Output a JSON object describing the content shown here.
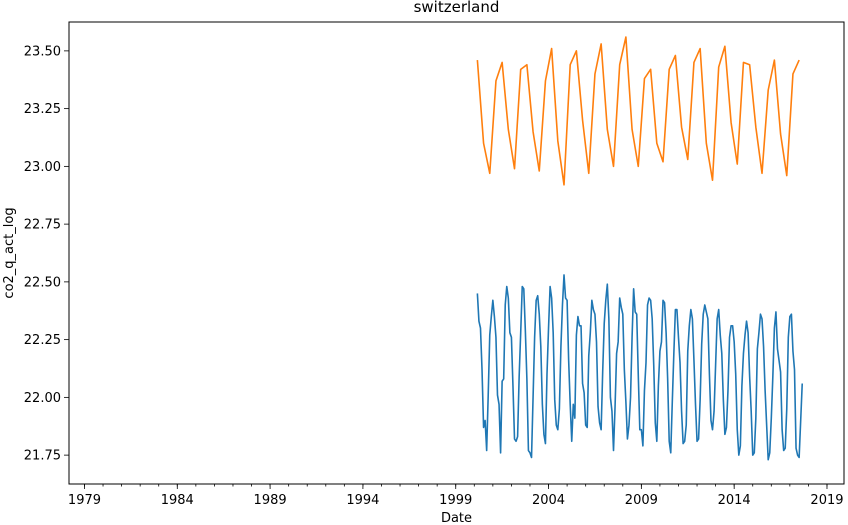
{
  "chart_data": {
    "type": "line",
    "title": "switzerland",
    "xlabel": "Date",
    "ylabel": "co2_q_act_log",
    "xlim": [
      "1978-03",
      "2019-12"
    ],
    "ylim": [
      21.625,
      23.625
    ],
    "x_ticks": [
      "1979",
      "1984",
      "1989",
      "1994",
      "1999",
      "2004",
      "2009",
      "2014",
      "2019"
    ],
    "y_ticks": [
      "21.75",
      "22.00",
      "22.25",
      "22.50",
      "22.75",
      "23.00",
      "23.25",
      "23.50"
    ],
    "grid": false,
    "legend": "none",
    "series": [
      {
        "color": "#1f77b4",
        "points": [
          [
            "2000-03",
            22.45
          ],
          [
            "2000-04",
            22.33
          ],
          [
            "2000-05",
            22.3
          ],
          [
            "2000-06",
            22.12
          ],
          [
            "2000-07",
            21.87
          ],
          [
            "2000-08",
            21.9
          ],
          [
            "2000-09",
            21.77
          ],
          [
            "2000-10",
            22.01
          ],
          [
            "2000-11",
            22.27
          ],
          [
            "2000-12",
            22.35
          ],
          [
            "2001-01",
            22.42
          ],
          [
            "2001-02",
            22.35
          ],
          [
            "2001-03",
            22.26
          ],
          [
            "2001-04",
            22.01
          ],
          [
            "2001-05",
            21.97
          ],
          [
            "2001-06",
            21.76
          ],
          [
            "2001-07",
            22.07
          ],
          [
            "2001-08",
            22.08
          ],
          [
            "2001-09",
            22.4
          ],
          [
            "2001-10",
            22.48
          ],
          [
            "2001-11",
            22.43
          ],
          [
            "2001-12",
            22.28
          ],
          [
            "2002-01",
            22.26
          ],
          [
            "2002-02",
            22.05
          ],
          [
            "2002-03",
            21.82
          ],
          [
            "2002-04",
            21.81
          ],
          [
            "2002-05",
            21.83
          ],
          [
            "2002-06",
            22.09
          ],
          [
            "2002-07",
            22.28
          ],
          [
            "2002-08",
            22.48
          ],
          [
            "2002-09",
            22.47
          ],
          [
            "2002-10",
            22.29
          ],
          [
            "2002-11",
            22.08
          ],
          [
            "2002-12",
            21.77
          ],
          [
            "2003-01",
            21.76
          ],
          [
            "2003-02",
            21.74
          ],
          [
            "2003-03",
            22.0
          ],
          [
            "2003-04",
            22.26
          ],
          [
            "2003-05",
            22.42
          ],
          [
            "2003-06",
            22.44
          ],
          [
            "2003-07",
            22.36
          ],
          [
            "2003-08",
            22.22
          ],
          [
            "2003-09",
            21.97
          ],
          [
            "2003-10",
            21.84
          ],
          [
            "2003-11",
            21.8
          ],
          [
            "2003-12",
            22.1
          ],
          [
            "2004-01",
            22.3
          ],
          [
            "2004-02",
            22.48
          ],
          [
            "2004-03",
            22.43
          ],
          [
            "2004-04",
            22.28
          ],
          [
            "2004-05",
            21.99
          ],
          [
            "2004-06",
            21.88
          ],
          [
            "2004-07",
            21.86
          ],
          [
            "2004-08",
            21.95
          ],
          [
            "2004-09",
            22.22
          ],
          [
            "2004-10",
            22.4
          ],
          [
            "2004-11",
            22.53
          ],
          [
            "2004-12",
            22.43
          ],
          [
            "2005-01",
            22.42
          ],
          [
            "2005-02",
            22.16
          ],
          [
            "2005-03",
            21.97
          ],
          [
            "2005-04",
            21.81
          ],
          [
            "2005-05",
            21.97
          ],
          [
            "2005-06",
            21.91
          ],
          [
            "2005-07",
            22.27
          ],
          [
            "2005-08",
            22.35
          ],
          [
            "2005-09",
            22.31
          ],
          [
            "2005-10",
            22.31
          ],
          [
            "2005-11",
            22.06
          ],
          [
            "2005-12",
            22.02
          ],
          [
            "2006-01",
            21.88
          ],
          [
            "2006-02",
            21.87
          ],
          [
            "2006-03",
            22.18
          ],
          [
            "2006-04",
            22.28
          ],
          [
            "2006-05",
            22.42
          ],
          [
            "2006-06",
            22.38
          ],
          [
            "2006-07",
            22.36
          ],
          [
            "2006-08",
            22.24
          ],
          [
            "2006-09",
            21.96
          ],
          [
            "2006-10",
            21.89
          ],
          [
            "2006-11",
            21.86
          ],
          [
            "2006-12",
            22.11
          ],
          [
            "2007-01",
            22.32
          ],
          [
            "2007-02",
            22.42
          ],
          [
            "2007-03",
            22.49
          ],
          [
            "2007-04",
            22.34
          ],
          [
            "2007-05",
            22.0
          ],
          [
            "2007-06",
            21.94
          ],
          [
            "2007-07",
            21.77
          ],
          [
            "2007-08",
            21.96
          ],
          [
            "2007-09",
            22.19
          ],
          [
            "2007-10",
            22.24
          ],
          [
            "2007-11",
            22.43
          ],
          [
            "2007-12",
            22.39
          ],
          [
            "2008-01",
            22.36
          ],
          [
            "2008-02",
            22.12
          ],
          [
            "2008-03",
            21.98
          ],
          [
            "2008-04",
            21.82
          ],
          [
            "2008-05",
            21.88
          ],
          [
            "2008-06",
            22.0
          ],
          [
            "2008-07",
            22.26
          ],
          [
            "2008-08",
            22.47
          ],
          [
            "2008-09",
            22.37
          ],
          [
            "2008-10",
            22.36
          ],
          [
            "2008-11",
            22.1
          ],
          [
            "2008-12",
            21.86
          ],
          [
            "2009-01",
            21.86
          ],
          [
            "2009-02",
            21.79
          ],
          [
            "2009-03",
            22.03
          ],
          [
            "2009-04",
            22.15
          ],
          [
            "2009-05",
            22.4
          ],
          [
            "2009-06",
            22.43
          ],
          [
            "2009-07",
            22.42
          ],
          [
            "2009-08",
            22.34
          ],
          [
            "2009-09",
            22.14
          ],
          [
            "2009-10",
            21.89
          ],
          [
            "2009-11",
            21.81
          ],
          [
            "2009-12",
            22.05
          ],
          [
            "2010-01",
            22.2
          ],
          [
            "2010-02",
            22.24
          ],
          [
            "2010-03",
            22.42
          ],
          [
            "2010-04",
            22.41
          ],
          [
            "2010-05",
            22.28
          ],
          [
            "2010-06",
            22.08
          ],
          [
            "2010-07",
            21.81
          ],
          [
            "2010-08",
            21.76
          ],
          [
            "2010-09",
            21.98
          ],
          [
            "2010-10",
            22.19
          ],
          [
            "2010-11",
            22.38
          ],
          [
            "2010-12",
            22.38
          ],
          [
            "2011-01",
            22.26
          ],
          [
            "2011-02",
            22.15
          ],
          [
            "2011-03",
            21.94
          ],
          [
            "2011-04",
            21.8
          ],
          [
            "2011-05",
            21.81
          ],
          [
            "2011-06",
            21.88
          ],
          [
            "2011-07",
            22.2
          ],
          [
            "2011-08",
            22.31
          ],
          [
            "2011-09",
            22.38
          ],
          [
            "2011-10",
            22.34
          ],
          [
            "2011-11",
            22.16
          ],
          [
            "2011-12",
            21.97
          ],
          [
            "2012-01",
            21.81
          ],
          [
            "2012-02",
            21.82
          ],
          [
            "2012-03",
            21.99
          ],
          [
            "2012-04",
            22.23
          ],
          [
            "2012-05",
            22.36
          ],
          [
            "2012-06",
            22.4
          ],
          [
            "2012-07",
            22.37
          ],
          [
            "2012-08",
            22.34
          ],
          [
            "2012-09",
            22.1
          ],
          [
            "2012-10",
            21.9
          ],
          [
            "2012-11",
            21.86
          ],
          [
            "2012-12",
            21.94
          ],
          [
            "2013-01",
            22.14
          ],
          [
            "2013-02",
            22.34
          ],
          [
            "2013-03",
            22.38
          ],
          [
            "2013-04",
            22.27
          ],
          [
            "2013-05",
            22.19
          ],
          [
            "2013-06",
            21.99
          ],
          [
            "2013-07",
            21.84
          ],
          [
            "2013-08",
            21.87
          ],
          [
            "2013-09",
            22.03
          ],
          [
            "2013-10",
            22.26
          ],
          [
            "2013-11",
            22.31
          ],
          [
            "2013-12",
            22.31
          ],
          [
            "2014-01",
            22.24
          ],
          [
            "2014-02",
            22.1
          ],
          [
            "2014-03",
            21.86
          ],
          [
            "2014-04",
            21.75
          ],
          [
            "2014-05",
            21.79
          ],
          [
            "2014-06",
            22.05
          ],
          [
            "2014-07",
            22.19
          ],
          [
            "2014-08",
            22.27
          ],
          [
            "2014-09",
            22.33
          ],
          [
            "2014-10",
            22.28
          ],
          [
            "2014-11",
            22.09
          ],
          [
            "2014-12",
            21.94
          ],
          [
            "2015-01",
            21.75
          ],
          [
            "2015-02",
            21.76
          ],
          [
            "2015-03",
            21.91
          ],
          [
            "2015-04",
            22.21
          ],
          [
            "2015-05",
            22.28
          ],
          [
            "2015-06",
            22.36
          ],
          [
            "2015-07",
            22.34
          ],
          [
            "2015-08",
            22.22
          ],
          [
            "2015-09",
            22.03
          ],
          [
            "2015-10",
            21.88
          ],
          [
            "2015-11",
            21.73
          ],
          [
            "2015-12",
            21.76
          ],
          [
            "2016-01",
            21.91
          ],
          [
            "2016-02",
            22.09
          ],
          [
            "2016-03",
            22.3
          ],
          [
            "2016-04",
            22.37
          ],
          [
            "2016-05",
            22.21
          ],
          [
            "2016-06",
            22.16
          ],
          [
            "2016-07",
            22.11
          ],
          [
            "2016-08",
            21.86
          ],
          [
            "2016-09",
            21.77
          ],
          [
            "2016-10",
            21.78
          ],
          [
            "2016-11",
            21.95
          ],
          [
            "2016-12",
            22.26
          ],
          [
            "2017-01",
            22.35
          ],
          [
            "2017-02",
            22.36
          ],
          [
            "2017-03",
            22.2
          ],
          [
            "2017-04",
            22.12
          ],
          [
            "2017-05",
            21.78
          ],
          [
            "2017-06",
            21.75
          ],
          [
            "2017-07",
            21.74
          ],
          [
            "2017-08",
            21.9
          ],
          [
            "2017-09",
            22.06
          ]
        ]
      },
      {
        "color": "#ff7f0e",
        "points": [
          [
            "2000-03",
            23.46
          ],
          [
            "2000-07",
            23.1
          ],
          [
            "2000-11",
            22.97
          ],
          [
            "2001-03",
            23.37
          ],
          [
            "2001-07",
            23.45
          ],
          [
            "2001-11",
            23.16
          ],
          [
            "2002-03",
            22.99
          ],
          [
            "2002-07",
            23.42
          ],
          [
            "2002-11",
            23.44
          ],
          [
            "2003-03",
            23.15
          ],
          [
            "2003-07",
            22.98
          ],
          [
            "2003-11",
            23.37
          ],
          [
            "2004-03",
            23.51
          ],
          [
            "2004-07",
            23.11
          ],
          [
            "2004-11",
            22.92
          ],
          [
            "2005-03",
            23.44
          ],
          [
            "2005-07",
            23.5
          ],
          [
            "2005-11",
            23.2
          ],
          [
            "2006-03",
            22.97
          ],
          [
            "2006-07",
            23.4
          ],
          [
            "2006-11",
            23.53
          ],
          [
            "2007-03",
            23.16
          ],
          [
            "2007-07",
            23.0
          ],
          [
            "2007-11",
            23.44
          ],
          [
            "2008-03",
            23.56
          ],
          [
            "2008-07",
            23.16
          ],
          [
            "2008-11",
            23.0
          ],
          [
            "2009-03",
            23.38
          ],
          [
            "2009-07",
            23.42
          ],
          [
            "2009-11",
            23.1
          ],
          [
            "2010-03",
            23.02
          ],
          [
            "2010-07",
            23.42
          ],
          [
            "2010-11",
            23.48
          ],
          [
            "2011-03",
            23.17
          ],
          [
            "2011-07",
            23.03
          ],
          [
            "2011-11",
            23.45
          ],
          [
            "2012-03",
            23.51
          ],
          [
            "2012-07",
            23.1
          ],
          [
            "2012-11",
            22.94
          ],
          [
            "2013-03",
            23.43
          ],
          [
            "2013-07",
            23.52
          ],
          [
            "2013-11",
            23.19
          ],
          [
            "2014-03",
            23.01
          ],
          [
            "2014-07",
            23.45
          ],
          [
            "2014-11",
            23.44
          ],
          [
            "2015-03",
            23.17
          ],
          [
            "2015-07",
            22.97
          ],
          [
            "2015-11",
            23.33
          ],
          [
            "2016-03",
            23.46
          ],
          [
            "2016-07",
            23.14
          ],
          [
            "2016-11",
            22.96
          ],
          [
            "2017-03",
            23.4
          ],
          [
            "2017-07",
            23.46
          ]
        ]
      }
    ]
  }
}
